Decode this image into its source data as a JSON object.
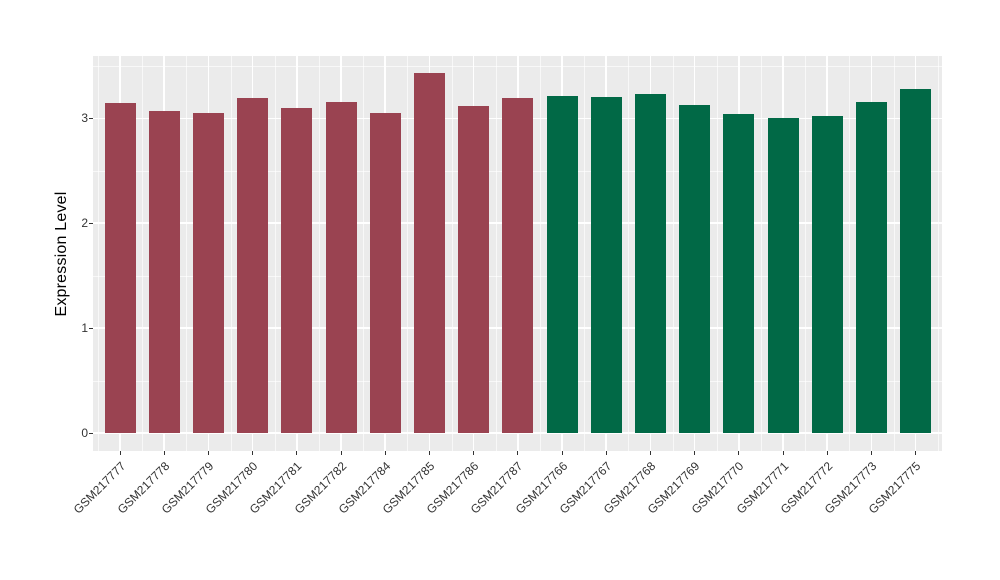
{
  "figure": {
    "background": "#FFFFFF",
    "panel_background": "#EBEBEB",
    "gridline_color": "#FFFFFF",
    "axis_text_color": "#333333"
  },
  "chart_data": {
    "type": "bar",
    "title": "",
    "xlabel": "",
    "ylabel": "Expression Level",
    "ylim": [
      0,
      3.6
    ],
    "y_ticks": [
      "0",
      "1",
      "2",
      "3"
    ],
    "y_minor_gridlines": [
      0.5,
      1.5,
      2.5,
      3.5
    ],
    "grid": "white major and minor gridlines on gray panel",
    "legend_position": "none",
    "categories": [
      "GSM217777",
      "GSM217778",
      "GSM217779",
      "GSM217780",
      "GSM217781",
      "GSM217782",
      "GSM217784",
      "GSM217785",
      "GSM217786",
      "GSM217787",
      "GSM217766",
      "GSM217767",
      "GSM217768",
      "GSM217769",
      "GSM217770",
      "GSM217771",
      "GSM217772",
      "GSM217773",
      "GSM217775"
    ],
    "values": [
      3.15,
      3.07,
      3.05,
      3.19,
      3.1,
      3.16,
      3.05,
      3.43,
      3.12,
      3.19,
      3.21,
      3.2,
      3.23,
      3.13,
      3.04,
      3.0,
      3.02,
      3.16,
      3.28
    ],
    "bar_groups": [
      "maroon",
      "maroon",
      "maroon",
      "maroon",
      "maroon",
      "maroon",
      "maroon",
      "maroon",
      "maroon",
      "maroon",
      "green",
      "green",
      "green",
      "green",
      "green",
      "green",
      "green",
      "green",
      "green"
    ],
    "group_colors": {
      "maroon": "#9A4351",
      "green": "#016946"
    }
  }
}
